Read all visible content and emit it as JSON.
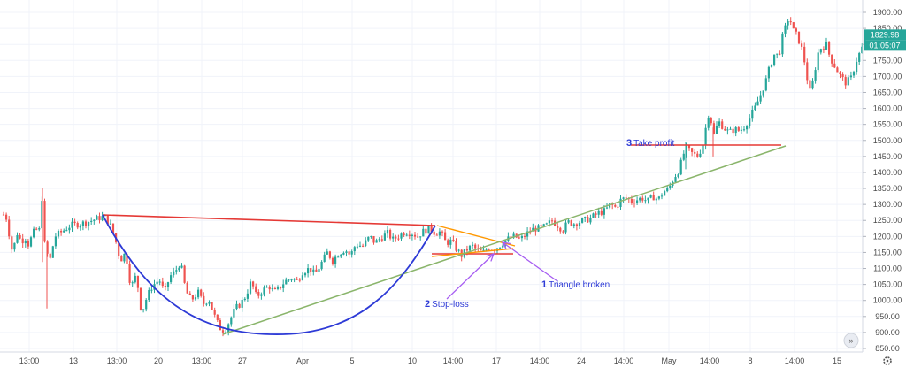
{
  "colors": {
    "bull": "#26a69a",
    "bear": "#ef5350",
    "grid": "#f0f3fa",
    "axis_text": "#4a4a4a",
    "price_badge": "#26a69a",
    "resistance_red": "#e53935",
    "support_orange": "#ff9800",
    "trend_green": "#8ab56b",
    "cup_blue": "#2d3ad6",
    "arrow_purple": "#a65cf2",
    "annotation_blue": "#2d3ad6"
  },
  "chart_data": {
    "type": "candlestick",
    "y_range": [
      850,
      1900
    ],
    "y_ticks": [
      "1900.00",
      "1850.00",
      "1800.00",
      "1750.00",
      "1700.00",
      "1650.00",
      "1600.00",
      "1550.00",
      "1500.00",
      "1450.00",
      "1400.00",
      "1350.00",
      "1300.00",
      "1250.00",
      "1200.00",
      "1150.00",
      "1100.00",
      "1050.00",
      "1000.00",
      "950.00",
      "900.00",
      "850.00"
    ],
    "x_ticks": [
      "13:00",
      "13",
      "13:00",
      "20",
      "13:00",
      "27",
      "Apr",
      "5",
      "10",
      "14:00",
      "17",
      "14:00",
      "24",
      "14:00",
      "May",
      "14:00",
      "8",
      "14:00",
      "15"
    ],
    "last_price": "1829.98",
    "countdown": "01:05:07",
    "keypoints": [
      [
        0,
        1255
      ],
      [
        6,
        1275
      ],
      [
        14,
        1150
      ],
      [
        20,
        1215
      ],
      [
        24,
        1180
      ],
      [
        28,
        1200
      ],
      [
        32,
        1175
      ],
      [
        40,
        1225
      ],
      [
        44,
        1210
      ],
      [
        48,
        1340
      ],
      [
        50,
        1180
      ],
      [
        56,
        1120
      ],
      [
        62,
        1200
      ],
      [
        70,
        1215
      ],
      [
        80,
        1235
      ],
      [
        92,
        1240
      ],
      [
        102,
        1248
      ],
      [
        112,
        1258
      ],
      [
        118,
        1262
      ],
      [
        124,
        1240
      ],
      [
        130,
        1195
      ],
      [
        136,
        1125
      ],
      [
        142,
        1150
      ],
      [
        148,
        1040
      ],
      [
        154,
        1080
      ],
      [
        160,
        960
      ],
      [
        166,
        1010
      ],
      [
        172,
        1045
      ],
      [
        180,
        1065
      ],
      [
        186,
        1025
      ],
      [
        192,
        1075
      ],
      [
        198,
        1090
      ],
      [
        204,
        1120
      ],
      [
        210,
        1030
      ],
      [
        216,
        1000
      ],
      [
        224,
        1025
      ],
      [
        230,
        990
      ],
      [
        236,
        1005
      ],
      [
        242,
        955
      ],
      [
        248,
        915
      ],
      [
        254,
        905
      ],
      [
        260,
        940
      ],
      [
        266,
        975
      ],
      [
        272,
        990
      ],
      [
        278,
        1015
      ],
      [
        284,
        1060
      ],
      [
        290,
        1010
      ],
      [
        296,
        1030
      ],
      [
        304,
        1045
      ],
      [
        310,
        1025
      ],
      [
        316,
        1040
      ],
      [
        322,
        1060
      ],
      [
        330,
        1070
      ],
      [
        336,
        1060
      ],
      [
        342,
        1090
      ],
      [
        350,
        1100
      ],
      [
        356,
        1080
      ],
      [
        362,
        1110
      ],
      [
        370,
        1150
      ],
      [
        376,
        1125
      ],
      [
        382,
        1145
      ],
      [
        390,
        1160
      ],
      [
        396,
        1140
      ],
      [
        402,
        1175
      ],
      [
        410,
        1170
      ],
      [
        418,
        1200
      ],
      [
        424,
        1180
      ],
      [
        430,
        1195
      ],
      [
        438,
        1210
      ],
      [
        444,
        1190
      ],
      [
        450,
        1200
      ],
      [
        458,
        1215
      ],
      [
        466,
        1210
      ],
      [
        472,
        1200
      ],
      [
        478,
        1215
      ],
      [
        486,
        1225
      ],
      [
        492,
        1210
      ],
      [
        498,
        1215
      ],
      [
        504,
        1180
      ],
      [
        510,
        1185
      ],
      [
        516,
        1160
      ],
      [
        522,
        1140
      ],
      [
        528,
        1160
      ],
      [
        534,
        1170
      ],
      [
        540,
        1155
      ],
      [
        546,
        1150
      ],
      [
        552,
        1165
      ],
      [
        558,
        1160
      ],
      [
        564,
        1170
      ],
      [
        570,
        1185
      ],
      [
        576,
        1195
      ],
      [
        582,
        1200
      ],
      [
        588,
        1190
      ],
      [
        594,
        1205
      ],
      [
        600,
        1220
      ],
      [
        606,
        1225
      ],
      [
        612,
        1225
      ],
      [
        618,
        1235
      ],
      [
        624,
        1250
      ],
      [
        630,
        1235
      ],
      [
        636,
        1220
      ],
      [
        642,
        1245
      ],
      [
        648,
        1240
      ],
      [
        654,
        1245
      ],
      [
        660,
        1250
      ],
      [
        666,
        1255
      ],
      [
        672,
        1265
      ],
      [
        678,
        1275
      ],
      [
        684,
        1280
      ],
      [
        690,
        1300
      ],
      [
        696,
        1290
      ],
      [
        702,
        1315
      ],
      [
        708,
        1320
      ],
      [
        714,
        1310
      ],
      [
        720,
        1315
      ],
      [
        726,
        1320
      ],
      [
        732,
        1310
      ],
      [
        738,
        1325
      ],
      [
        744,
        1315
      ],
      [
        750,
        1340
      ],
      [
        756,
        1350
      ],
      [
        762,
        1385
      ],
      [
        768,
        1410
      ],
      [
        772,
        1455
      ],
      [
        776,
        1475
      ],
      [
        782,
        1460
      ],
      [
        788,
        1450
      ],
      [
        794,
        1480
      ],
      [
        798,
        1545
      ],
      [
        802,
        1600
      ],
      [
        806,
        1510
      ],
      [
        812,
        1560
      ],
      [
        818,
        1540
      ],
      [
        824,
        1525
      ],
      [
        830,
        1535
      ],
      [
        836,
        1530
      ],
      [
        842,
        1545
      ],
      [
        848,
        1575
      ],
      [
        854,
        1605
      ],
      [
        860,
        1645
      ],
      [
        866,
        1690
      ],
      [
        870,
        1730
      ],
      [
        876,
        1775
      ],
      [
        880,
        1760
      ],
      [
        884,
        1820
      ],
      [
        888,
        1855
      ],
      [
        892,
        1890
      ],
      [
        896,
        1845
      ],
      [
        900,
        1830
      ],
      [
        904,
        1805
      ],
      [
        908,
        1770
      ],
      [
        912,
        1695
      ],
      [
        916,
        1645
      ],
      [
        920,
        1700
      ],
      [
        924,
        1770
      ],
      [
        928,
        1790
      ],
      [
        934,
        1800
      ],
      [
        938,
        1760
      ],
      [
        944,
        1730
      ],
      [
        950,
        1700
      ],
      [
        956,
        1680
      ],
      [
        962,
        1695
      ],
      [
        968,
        1750
      ],
      [
        972,
        1775
      ],
      [
        976,
        1800
      ],
      [
        978,
        1815
      ]
    ],
    "annotations": [
      {
        "num": "1",
        "text": "Triangle broken"
      },
      {
        "num": "2",
        "text": "Stop-loss"
      },
      {
        "num": "3",
        "text": "Take profit"
      }
    ]
  }
}
